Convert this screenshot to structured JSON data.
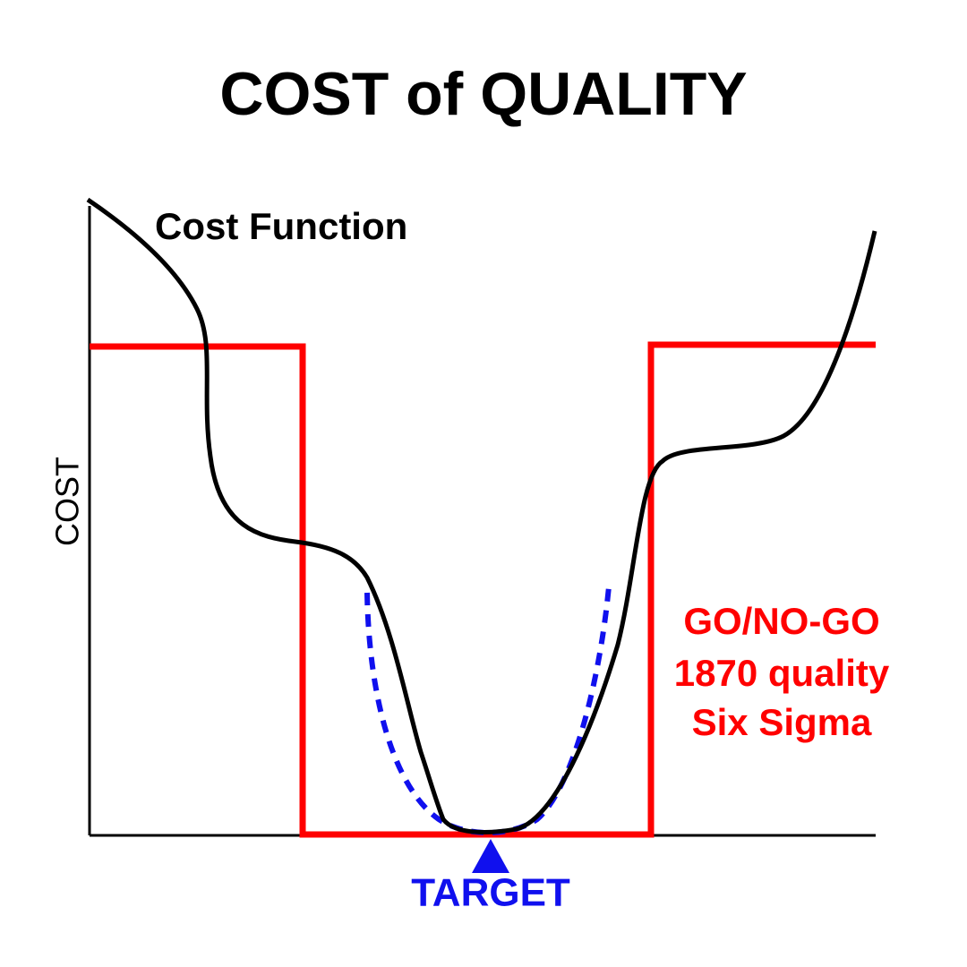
{
  "title": "COST of QUALITY",
  "curve_label": "Cost Function",
  "y_axis_label": "COST",
  "limit_labels": [
    "GO/NO-GO",
    "1870 quality",
    "Six Sigma"
  ],
  "target_label": "TARGET"
}
